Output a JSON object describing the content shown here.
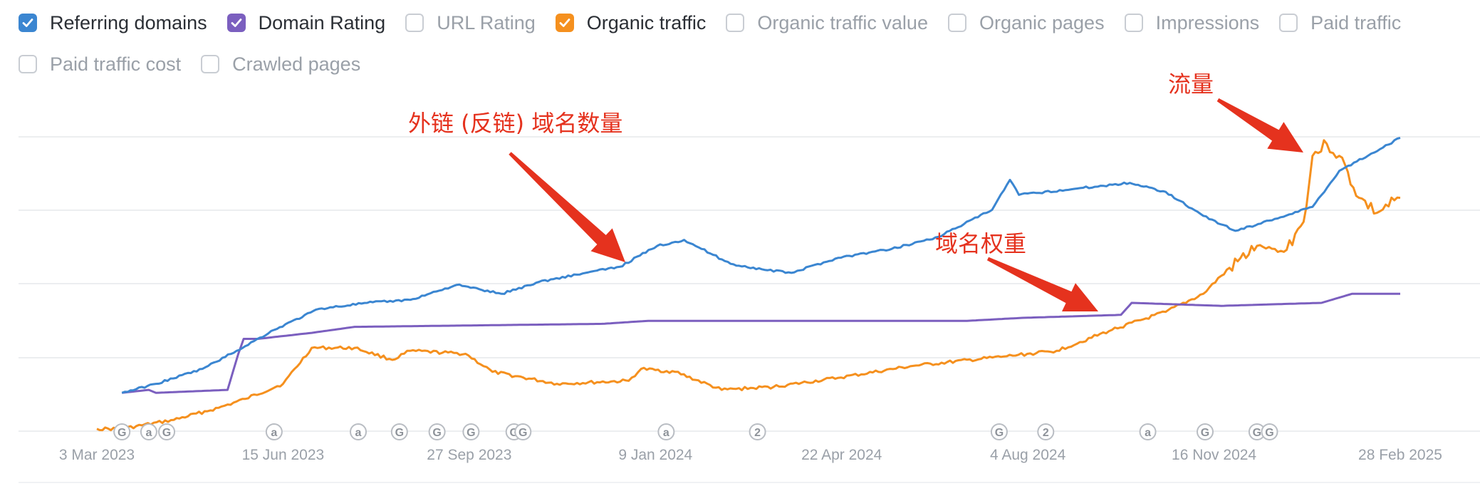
{
  "legend": [
    {
      "label": "Referring domains",
      "checked": true,
      "color": "#3b86d1"
    },
    {
      "label": "Domain Rating",
      "checked": true,
      "color": "#7b5fbf"
    },
    {
      "label": "URL Rating",
      "checked": false,
      "color": ""
    },
    {
      "label": "Organic traffic",
      "checked": true,
      "color": "#f5901e"
    },
    {
      "label": "Organic traffic value",
      "checked": false,
      "color": ""
    },
    {
      "label": "Organic pages",
      "checked": false,
      "color": ""
    },
    {
      "label": "Impressions",
      "checked": false,
      "color": ""
    },
    {
      "label": "Paid traffic",
      "checked": false,
      "color": ""
    },
    {
      "label": "Paid traffic cost",
      "checked": false,
      "color": ""
    },
    {
      "label": "Crawled pages",
      "checked": false,
      "color": ""
    }
  ],
  "annotations": {
    "referring_domains_note": "外链 (反链) 域名数量",
    "domain_rating_note": "域名权重",
    "traffic_note": "流量"
  },
  "chart_data": {
    "type": "line",
    "xlabel": "",
    "ylabel": "",
    "y_axis_labels_visible": false,
    "grid": "horizontal",
    "x_ticks": [
      "3 Mar 2023",
      "15 Jun 2023",
      "27 Sep 2023",
      "9 Jan 2024",
      "22 Apr 2024",
      "4 Aug 2024",
      "16 Nov 2024",
      "28 Feb 2025"
    ],
    "x_range": [
      "2023-03-03",
      "2025-02-28"
    ],
    "y_range_relative": [
      0,
      100
    ],
    "event_markers": [
      {
        "date": "2023-03-17",
        "symbol": "G"
      },
      {
        "date": "2023-04-01",
        "symbol": "a"
      },
      {
        "date": "2023-04-11",
        "symbol": "G"
      },
      {
        "date": "2023-06-10",
        "symbol": "a"
      },
      {
        "date": "2023-07-27",
        "symbol": "a"
      },
      {
        "date": "2023-08-19",
        "symbol": "G"
      },
      {
        "date": "2023-09-09",
        "symbol": "G"
      },
      {
        "date": "2023-09-28",
        "symbol": "G"
      },
      {
        "date": "2023-10-22",
        "symbol": "G"
      },
      {
        "date": "2023-10-27",
        "symbol": "G"
      },
      {
        "date": "2024-01-15",
        "symbol": "a"
      },
      {
        "date": "2024-03-06",
        "symbol": "2"
      },
      {
        "date": "2024-07-19",
        "symbol": "G"
      },
      {
        "date": "2024-08-14",
        "symbol": "2"
      },
      {
        "date": "2024-10-10",
        "symbol": "a"
      },
      {
        "date": "2024-11-11",
        "symbol": "G"
      },
      {
        "date": "2024-12-10",
        "symbol": "G"
      },
      {
        "date": "2024-12-17",
        "symbol": "G"
      }
    ],
    "series": [
      {
        "name": "Referring domains",
        "color": "#3b86d1",
        "points": [
          [
            "2023-03-17",
            13
          ],
          [
            "2023-04-05",
            16
          ],
          [
            "2023-05-01",
            21
          ],
          [
            "2023-05-20",
            27
          ],
          [
            "2023-06-10",
            34
          ],
          [
            "2023-07-05",
            41
          ],
          [
            "2023-08-01",
            43
          ],
          [
            "2023-08-25",
            44
          ],
          [
            "2023-09-20",
            49
          ],
          [
            "2023-10-15",
            46
          ],
          [
            "2023-11-05",
            50
          ],
          [
            "2023-12-01",
            53
          ],
          [
            "2023-12-20",
            55
          ],
          [
            "2024-01-10",
            62
          ],
          [
            "2024-01-25",
            64
          ],
          [
            "2024-02-20",
            56
          ],
          [
            "2024-03-10",
            54
          ],
          [
            "2024-03-25",
            53
          ],
          [
            "2024-04-20",
            58
          ],
          [
            "2024-05-20",
            61
          ],
          [
            "2024-06-15",
            65
          ],
          [
            "2024-07-15",
            74
          ],
          [
            "2024-07-25",
            84
          ],
          [
            "2024-07-30",
            79
          ],
          [
            "2024-08-30",
            81
          ],
          [
            "2024-09-30",
            83
          ],
          [
            "2024-10-20",
            80
          ],
          [
            "2024-11-10",
            72
          ],
          [
            "2024-11-28",
            67
          ],
          [
            "2024-12-20",
            71
          ],
          [
            "2025-01-10",
            75
          ],
          [
            "2025-01-25",
            87
          ],
          [
            "2025-02-28",
            98
          ]
        ]
      },
      {
        "name": "Domain Rating",
        "color": "#7b5fbf",
        "points": [
          [
            "2023-03-17",
            13
          ],
          [
            "2023-04-01",
            14
          ],
          [
            "2023-04-05",
            13
          ],
          [
            "2023-05-15",
            14
          ],
          [
            "2023-05-21",
            26
          ],
          [
            "2023-05-24",
            31
          ],
          [
            "2023-06-01",
            31
          ],
          [
            "2023-07-01",
            33
          ],
          [
            "2023-07-25",
            35
          ],
          [
            "2023-12-10",
            36
          ],
          [
            "2024-01-05",
            37
          ],
          [
            "2024-07-01",
            37
          ],
          [
            "2024-08-01",
            38
          ],
          [
            "2024-09-25",
            39
          ],
          [
            "2024-10-01",
            43
          ],
          [
            "2024-11-20",
            42
          ],
          [
            "2025-01-15",
            43
          ],
          [
            "2025-02-01",
            46
          ],
          [
            "2025-02-28",
            46
          ]
        ]
      },
      {
        "name": "Organic traffic",
        "color": "#f5901e",
        "points": [
          [
            "2023-03-03",
            1
          ],
          [
            "2023-03-17",
            1
          ],
          [
            "2023-04-15",
            4
          ],
          [
            "2023-05-10",
            8
          ],
          [
            "2023-05-25",
            11
          ],
          [
            "2023-06-15",
            16
          ],
          [
            "2023-07-01",
            28
          ],
          [
            "2023-07-25",
            28
          ],
          [
            "2023-08-15",
            24
          ],
          [
            "2023-08-25",
            27
          ],
          [
            "2023-09-25",
            26
          ],
          [
            "2023-10-10",
            20
          ],
          [
            "2023-11-15",
            16
          ],
          [
            "2023-12-25",
            17
          ],
          [
            "2024-01-01",
            21
          ],
          [
            "2024-01-20",
            20
          ],
          [
            "2024-02-15",
            14
          ],
          [
            "2024-03-15",
            15
          ],
          [
            "2024-04-20",
            18
          ],
          [
            "2024-06-01",
            22
          ],
          [
            "2024-07-20",
            25
          ],
          [
            "2024-08-20",
            27
          ],
          [
            "2024-09-20",
            34
          ],
          [
            "2024-10-20",
            40
          ],
          [
            "2024-11-10",
            46
          ],
          [
            "2024-11-20",
            52
          ],
          [
            "2024-12-10",
            62
          ],
          [
            "2024-12-25",
            60
          ],
          [
            "2025-01-05",
            70
          ],
          [
            "2025-01-10",
            92
          ],
          [
            "2025-01-18",
            96
          ],
          [
            "2025-01-25",
            92
          ],
          [
            "2025-02-05",
            78
          ],
          [
            "2025-02-15",
            73
          ],
          [
            "2025-02-28",
            78
          ]
        ]
      }
    ]
  }
}
